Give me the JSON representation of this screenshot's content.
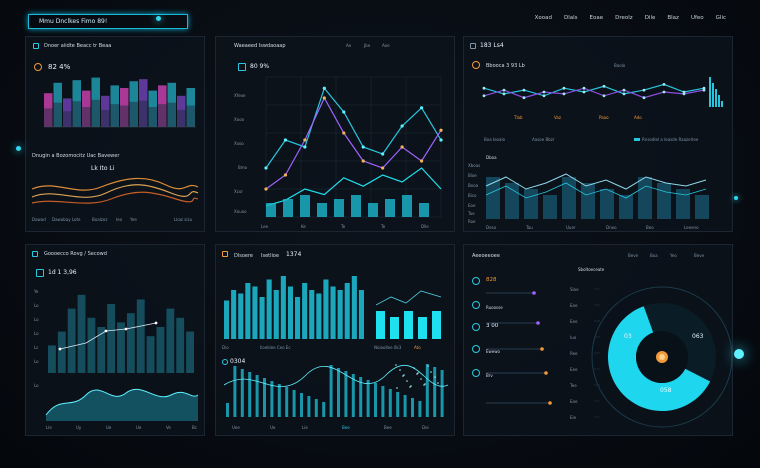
{
  "header": {
    "title": "Mmu Dnclkes Fimo 89!",
    "nav": [
      "Xooad",
      "Dlals",
      "Eoae",
      "Dreolz",
      "Dile",
      "Blaz",
      "Ufeo",
      "Glic"
    ]
  },
  "panel_1": {
    "title": "Dnoer aiidte Beacc tr Beaa",
    "value": "82 4%",
    "sub_title": "Dnugin a Bozomocitz Uac Bavewer",
    "sub_value": "Lk Ito Li",
    "footer": [
      "Dawad",
      "Dawabay Lote",
      "Boalzez",
      "Ieo",
      "Yee",
      "Lkaz sizu"
    ]
  },
  "panel_2": {
    "title": "Waeaeed Iswdaoaap",
    "nav": [
      "Ae",
      "Jbe",
      "Aoe"
    ],
    "value": "80 9%",
    "y_labels": [
      "Xfeoe",
      "Xooo",
      "Xxoo",
      "Bmo",
      "Xcor",
      "Xouoo"
    ],
    "x_labels": [
      "Lee",
      "Ke",
      "Te",
      "Te",
      "Dlle"
    ]
  },
  "panel_3": {
    "title": "183 Ls4",
    "value": "Bbooca 3 93 Lb",
    "tag": "Baolo",
    "row_labels": [
      "Tlab",
      "Vaz",
      "Paao",
      "Ado"
    ],
    "mid_labels": [
      "Boa Ieoalo",
      "Aasoe Bbzr"
    ],
    "mid_right": "Rnsodlel a leasde Raazerlee",
    "chart_tag": "Dboa",
    "y_labels": [
      "Xboas",
      "Bloe",
      "Booa",
      "Bico",
      "Eoe",
      "Toe",
      "Roe"
    ],
    "x_labels": [
      "Deso",
      "Tau",
      "Uuer",
      "Dneo",
      "Beo",
      "Leeeno"
    ]
  },
  "panel_4": {
    "title": "Goooecco Rovg / Secowd",
    "value": "1d 1 3,96",
    "y_labels": [
      "Ye",
      "Lo",
      "Lo",
      "Lo",
      "Lc",
      "Lo",
      "Lo"
    ],
    "x_labels": [
      "Lle",
      "Uy",
      "Ue",
      "Ue",
      "Ve",
      "Bc"
    ]
  },
  "panel_5": {
    "title": "Dlsoere",
    "title_2": "Isetlioe",
    "value": "1374",
    "sub_value": "0304",
    "labels": [
      "Dio",
      "Iioeklee Ceo Ec",
      "Noiaollee 0k3",
      "Ato"
    ],
    "x_labels": [
      "Uee",
      "Ue",
      "Lie",
      "Bee",
      "Bee",
      "Dei"
    ]
  },
  "panel_6": {
    "title": "Aeeoeeoee",
    "right_label": "Sboltoeceate",
    "nav": [
      "Beve",
      "Boa",
      "Yeo",
      "Beve"
    ],
    "list": [
      "828",
      "Ruoosse",
      "3 00",
      "Ewewo",
      "Brv"
    ],
    "donut_top": "03",
    "donut_mid": "063",
    "donut_bottom": "058",
    "axis_labels": [
      "Sloe",
      "Eoe",
      "Eeo",
      "Iuo",
      "Ree",
      "Eee",
      "Tee",
      "Eoe",
      "Eie"
    ]
  },
  "chart_data": [
    {
      "type": "bar",
      "values": [
        0.65,
        0.85,
        0.55,
        0.9,
        0.7,
        0.95,
        0.6,
        0.8,
        0.75,
        0.88,
        0.92,
        0.7,
        0.8,
        0.85,
        0.6,
        0.75
      ]
    },
    {
      "type": "line",
      "series": [
        {
          "values": [
            0.35,
            0.55,
            0.5,
            0.92,
            0.75,
            0.5,
            0.45,
            0.65,
            0.78,
            0.55
          ]
        },
        {
          "values": [
            0.2,
            0.3,
            0.55,
            0.85,
            0.6,
            0.4,
            0.35,
            0.5,
            0.4,
            0.62
          ]
        },
        {
          "values": [
            0.08,
            0.12,
            0.2,
            0.16,
            0.28,
            0.22,
            0.3,
            0.25,
            0.35,
            0.2
          ]
        }
      ]
    },
    {
      "type": "line",
      "series": [
        {
          "values": [
            0.6,
            0.45,
            0.55,
            0.4,
            0.6,
            0.5,
            0.65,
            0.45,
            0.55,
            0.7,
            0.5,
            0.6
          ]
        },
        {
          "values": [
            0.4,
            0.55,
            0.35,
            0.5,
            0.45,
            0.6,
            0.4,
            0.55,
            0.35,
            0.5,
            0.45,
            0.55
          ]
        }
      ]
    },
    {
      "type": "bar",
      "values": [
        0.3,
        0.45,
        0.7,
        0.85,
        0.6,
        0.5,
        0.75,
        0.55,
        0.65,
        0.8,
        0.4,
        0.5,
        0.7,
        0.6,
        0.45
      ]
    },
    {
      "type": "bar",
      "values": [
        0.55,
        0.7,
        0.65,
        0.8,
        0.75,
        0.6,
        0.85,
        0.7,
        0.9,
        0.75,
        0.6,
        0.8,
        0.7,
        0.65,
        0.85,
        0.75,
        0.7,
        0.8,
        0.9,
        0.7
      ]
    },
    {
      "type": "pie",
      "values": [
        0.62,
        0.38
      ]
    }
  ]
}
